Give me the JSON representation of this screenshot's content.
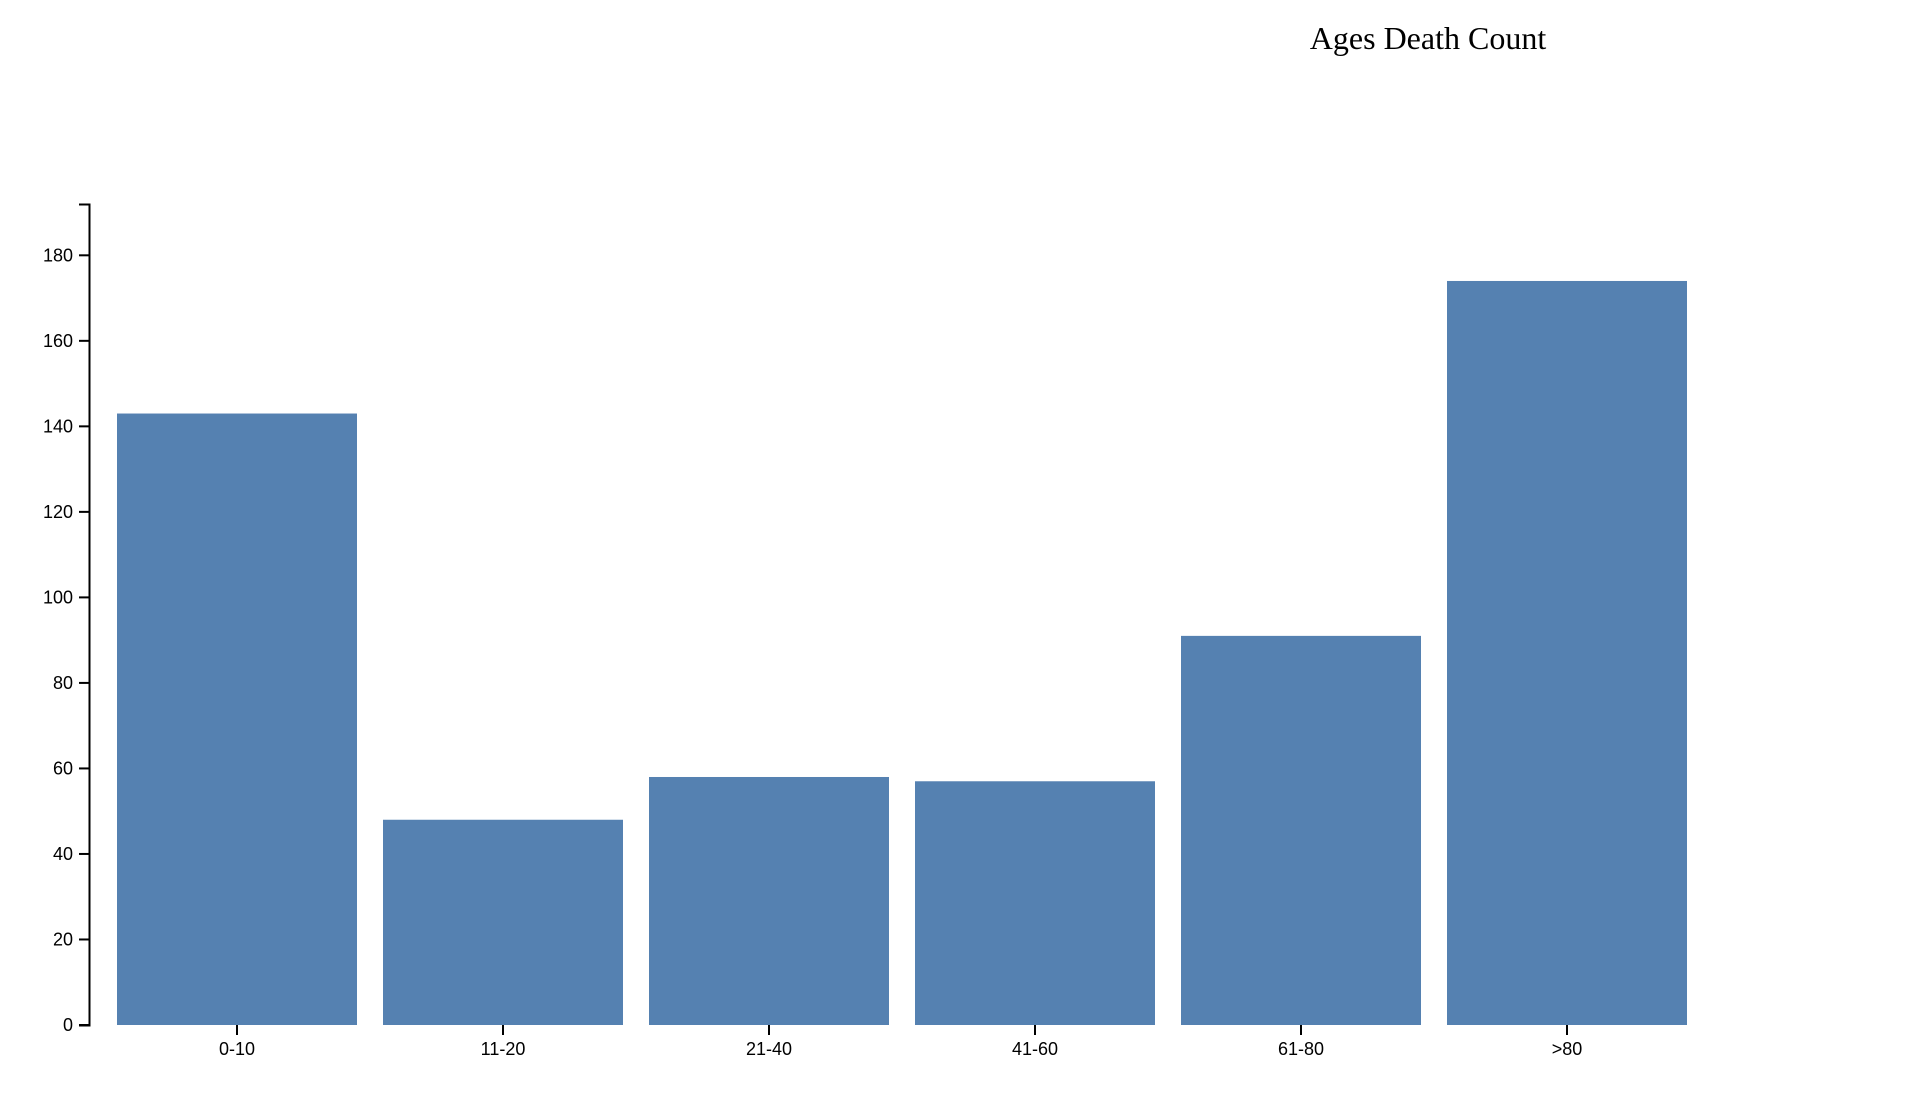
{
  "chart_data": {
    "type": "bar",
    "title": "Ages Death Count",
    "xlabel": "",
    "ylabel": "",
    "categories": [
      "0-10",
      "11-20",
      "21-40",
      "41-60",
      "61-80",
      ">80"
    ],
    "values": [
      143,
      48,
      58,
      57,
      91,
      174
    ],
    "ylim": [
      0,
      192
    ],
    "yticks": [
      0,
      20,
      40,
      60,
      80,
      100,
      120,
      140,
      160,
      180
    ],
    "bar_color": "#5581b1",
    "grid": false,
    "legend": "none"
  }
}
